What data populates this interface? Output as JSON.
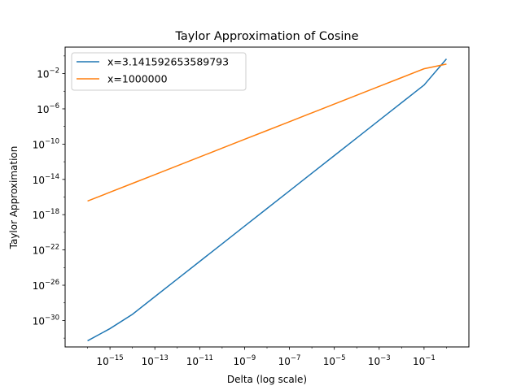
{
  "chart_data": {
    "type": "line",
    "title": "Taylor Approximation of Cosine",
    "xlabel": "Delta (log scale)",
    "ylabel": "Taylor Approximation",
    "x_scale": "log",
    "y_scale": "log",
    "xlim": [
      1e-17,
      10.0
    ],
    "ylim": [
      1e-33,
      10.0
    ],
    "grid": false,
    "legend_position": "top-left",
    "x_ticks": [
      1e-15,
      1e-13,
      1e-11,
      1e-09,
      1e-07,
      1e-05,
      0.001,
      0.1
    ],
    "x_tick_labels": [
      {
        "base": "10",
        "exp": "−15"
      },
      {
        "base": "10",
        "exp": "−13"
      },
      {
        "base": "10",
        "exp": "−11"
      },
      {
        "base": "10",
        "exp": "−9"
      },
      {
        "base": "10",
        "exp": "−7"
      },
      {
        "base": "10",
        "exp": "−5"
      },
      {
        "base": "10",
        "exp": "−3"
      },
      {
        "base": "10",
        "exp": "−1"
      }
    ],
    "y_ticks": [
      1e-30,
      1e-26,
      1e-22,
      1e-18,
      1e-14,
      1e-10,
      1e-06,
      0.01
    ],
    "y_tick_labels": [
      {
        "base": "10",
        "exp": "−30"
      },
      {
        "base": "10",
        "exp": "−26"
      },
      {
        "base": "10",
        "exp": "−22"
      },
      {
        "base": "10",
        "exp": "−18"
      },
      {
        "base": "10",
        "exp": "−14"
      },
      {
        "base": "10",
        "exp": "−10"
      },
      {
        "base": "10",
        "exp": "−6"
      },
      {
        "base": "10",
        "exp": "−2"
      }
    ],
    "series": [
      {
        "name": "x=3.141592653589793",
        "color": "#1f77b4",
        "x": [
          1e-16,
          1e-15,
          1e-14,
          1e-13,
          1e-12,
          1e-11,
          1e-10,
          1e-09,
          1e-08,
          1e-07,
          1e-06,
          1e-05,
          0.0001,
          0.001,
          0.01,
          0.1,
          1.0
        ],
        "y": [
          5e-33,
          1.2e-31,
          5e-30,
          5e-28,
          5e-26,
          5e-24,
          5e-22,
          5e-20,
          5e-18,
          5e-16,
          5e-14,
          5e-12,
          5e-10,
          5e-08,
          5e-06,
          0.0005,
          0.46
        ]
      },
      {
        "name": "x=1000000",
        "color": "#ff7f0e",
        "x": [
          1e-16,
          1e-15,
          1e-14,
          1e-13,
          1e-12,
          1e-11,
          1e-10,
          1e-09,
          1e-08,
          1e-07,
          1e-06,
          1e-05,
          0.0001,
          0.001,
          0.01,
          0.1,
          1.0
        ],
        "y": [
          3.5e-17,
          3.5e-16,
          3.5e-15,
          3.5e-14,
          3.5e-13,
          3.5e-12,
          3.5e-11,
          3.5e-10,
          3.5e-09,
          3.5e-08,
          3.5e-07,
          3.5e-06,
          3.5e-05,
          0.00035,
          0.0035,
          0.035,
          0.12
        ]
      }
    ]
  }
}
